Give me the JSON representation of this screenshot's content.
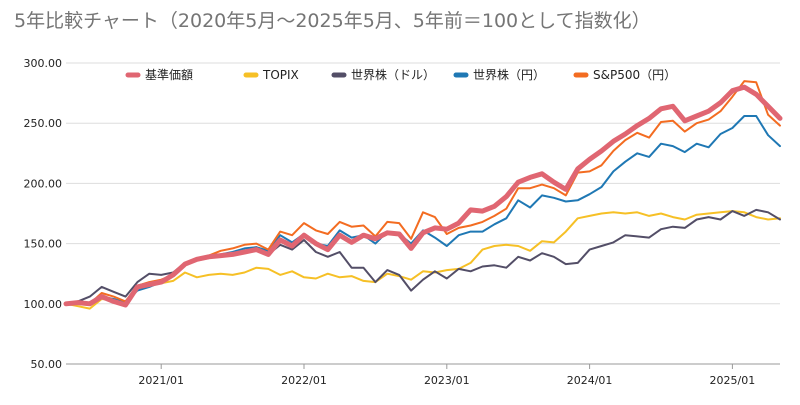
{
  "chart_data": {
    "type": "line",
    "title": "5年比較チャート（2020年5月〜2025年5月、5年前＝100として指数化）",
    "x_tick_labels": [
      "2021/01",
      "2022/01",
      "2023/01",
      "2024/01",
      "2025/01"
    ],
    "x_tick_months": [
      "2021-01",
      "2022-01",
      "2023-01",
      "2024-01",
      "2025-01"
    ],
    "y_tick_labels": [
      "50.00",
      "100.00",
      "150.00",
      "200.00",
      "250.00",
      "300.00"
    ],
    "y_ticks": [
      50,
      100,
      150,
      200,
      250,
      300
    ],
    "ylim": [
      50,
      300
    ],
    "x_range": [
      "2020-05",
      "2025-05"
    ],
    "grid": true,
    "legend": "top",
    "x": [
      "2020-05",
      "2020-06",
      "2020-07",
      "2020-08",
      "2020-09",
      "2020-10",
      "2020-11",
      "2020-12",
      "2021-01",
      "2021-02",
      "2021-03",
      "2021-04",
      "2021-05",
      "2021-06",
      "2021-07",
      "2021-08",
      "2021-09",
      "2021-10",
      "2021-11",
      "2021-12",
      "2022-01",
      "2022-02",
      "2022-03",
      "2022-04",
      "2022-05",
      "2022-06",
      "2022-07",
      "2022-08",
      "2022-09",
      "2022-10",
      "2022-11",
      "2022-12",
      "2023-01",
      "2023-02",
      "2023-03",
      "2023-04",
      "2023-05",
      "2023-06",
      "2023-07",
      "2023-08",
      "2023-09",
      "2023-10",
      "2023-11",
      "2023-12",
      "2024-01",
      "2024-02",
      "2024-03",
      "2024-04",
      "2024-05",
      "2024-06",
      "2024-07",
      "2024-08",
      "2024-09",
      "2024-10",
      "2024-11",
      "2024-12",
      "2025-01",
      "2025-02",
      "2025-03",
      "2025-04",
      "2025-05"
    ],
    "series": [
      {
        "name": "基準価額",
        "color": "#e06672",
        "width": 5,
        "values": [
          100,
          101,
          100,
          106,
          102,
          99,
          114,
          116,
          118,
          124,
          133,
          137,
          139,
          140,
          141,
          143,
          145,
          141,
          153,
          148,
          157,
          150,
          145,
          157,
          151,
          157,
          154,
          159,
          158,
          146,
          159,
          163,
          162,
          167,
          178,
          177,
          181,
          189,
          201,
          205,
          208,
          201,
          195,
          212,
          220,
          227,
          235,
          241,
          248,
          254,
          262,
          264,
          252,
          256,
          260,
          267,
          277,
          280,
          274,
          264,
          254
        ]
      },
      {
        "name": "TOPIX",
        "color": "#f6c026",
        "width": 2,
        "values": [
          100,
          98,
          96,
          104,
          103,
          100,
          113,
          116,
          117,
          119,
          126,
          122,
          124,
          125,
          124,
          126,
          130,
          129,
          124,
          127,
          122,
          121,
          125,
          122,
          123,
          119,
          118,
          125,
          123,
          120,
          127,
          126,
          128,
          129,
          134,
          145,
          148,
          149,
          148,
          144,
          152,
          151,
          160,
          171,
          173,
          175,
          176,
          175,
          176,
          173,
          175,
          172,
          170,
          174,
          175,
          176,
          177,
          176,
          172,
          170,
          171
        ]
      },
      {
        "name": "世界株（ドル）",
        "color": "#534e67",
        "width": 2,
        "values": [
          100,
          102,
          106,
          114,
          110,
          106,
          118,
          125,
          124,
          126,
          134,
          137,
          138,
          140,
          142,
          144,
          147,
          141,
          149,
          145,
          153,
          143,
          139,
          143,
          130,
          130,
          118,
          128,
          124,
          111,
          120,
          127,
          121,
          129,
          127,
          131,
          132,
          130,
          139,
          136,
          142,
          139,
          133,
          134,
          145,
          148,
          151,
          157,
          156,
          155,
          162,
          164,
          163,
          170,
          172,
          170,
          177,
          173,
          178,
          176,
          170
        ]
      },
      {
        "name": "世界株（円）",
        "color": "#1f78b4",
        "width": 2,
        "values": [
          100,
          101,
          99,
          106,
          104,
          101,
          111,
          114,
          118,
          124,
          132,
          136,
          138,
          141,
          143,
          146,
          147,
          144,
          157,
          151,
          158,
          150,
          148,
          161,
          155,
          157,
          150,
          160,
          158,
          150,
          161,
          155,
          148,
          157,
          160,
          160,
          166,
          171,
          186,
          180,
          190,
          188,
          185,
          186,
          191,
          197,
          210,
          218,
          225,
          222,
          233,
          231,
          226,
          233,
          230,
          241,
          246,
          256,
          256,
          240,
          231
        ]
      },
      {
        "name": "S&P500（円）",
        "color": "#f36c21",
        "width": 2,
        "values": [
          100,
          102,
          100,
          109,
          106,
          102,
          115,
          118,
          120,
          124,
          133,
          137,
          140,
          144,
          146,
          149,
          150,
          145,
          160,
          157,
          167,
          161,
          158,
          168,
          164,
          165,
          156,
          168,
          167,
          154,
          176,
          172,
          158,
          163,
          165,
          168,
          173,
          179,
          196,
          196,
          199,
          196,
          190,
          209,
          210,
          215,
          227,
          236,
          242,
          238,
          251,
          252,
          243,
          250,
          253,
          260,
          272,
          285,
          284,
          257,
          248
        ]
      }
    ]
  }
}
